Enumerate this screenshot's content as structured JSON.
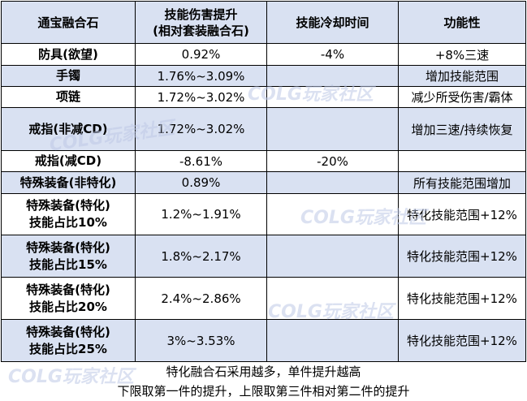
{
  "headers": {
    "col1": "通宝融合石",
    "col2_line1": "技能伤害提升",
    "col2_line2": "(相对套装融合石)",
    "col3": "技能冷却时间",
    "col4": "功能性"
  },
  "rows": [
    {
      "name1": "防具(欲望)",
      "name2": "",
      "dmg": "0.92%",
      "cd": "-4%",
      "func": "+8%三速"
    },
    {
      "name1": "手镯",
      "name2": "",
      "dmg": "1.76%~3.09%",
      "cd": "",
      "func": "增加技能范围"
    },
    {
      "name1": "项链",
      "name2": "",
      "dmg": "1.72%~3.02%",
      "cd": "",
      "func": "减少所受伤害/霸体"
    },
    {
      "name1": "戒指(非减CD)",
      "name2": "",
      "dmg": "1.72%~3.02%",
      "cd": "",
      "func": "增加三速/持续恢复"
    },
    {
      "name1": "戒指(减CD)",
      "name2": "",
      "dmg": "-8.61%",
      "cd": "-20%",
      "func": ""
    },
    {
      "name1": "特殊装备(非特化)",
      "name2": "",
      "dmg": "0.89%",
      "cd": "",
      "func": "所有技能范围增加"
    },
    {
      "name1": "特殊装备(特化)",
      "name2": "技能占比10%",
      "dmg": "1.2%~1.91%",
      "cd": "",
      "func": "特化技能范围+12%"
    },
    {
      "name1": "特殊装备(特化)",
      "name2": "技能占比15%",
      "dmg": "1.8%~2.17%",
      "cd": "",
      "func": "特化技能范围+12%"
    },
    {
      "name1": "特殊装备(特化)",
      "name2": "技能占比20%",
      "dmg": "2.4%~2.86%",
      "cd": "",
      "func": "特化技能范围+12%"
    },
    {
      "name1": "特殊装备(特化)",
      "name2": "技能占比25%",
      "dmg": "3%~3.53%",
      "cd": "",
      "func": "特化技能范围+12%"
    }
  ],
  "footer": {
    "line1": "特化融合石采用越多，单件提升越高",
    "line2": "下限取第一件的提升，上限取第三件相对第二件的提升"
  },
  "watermark": "COLG玩家社区",
  "colors": {
    "header_bg": "#d9e1f2",
    "alt_row_bg": "#d9e1f2",
    "green": "#2db04b",
    "red": "#e0201a"
  }
}
